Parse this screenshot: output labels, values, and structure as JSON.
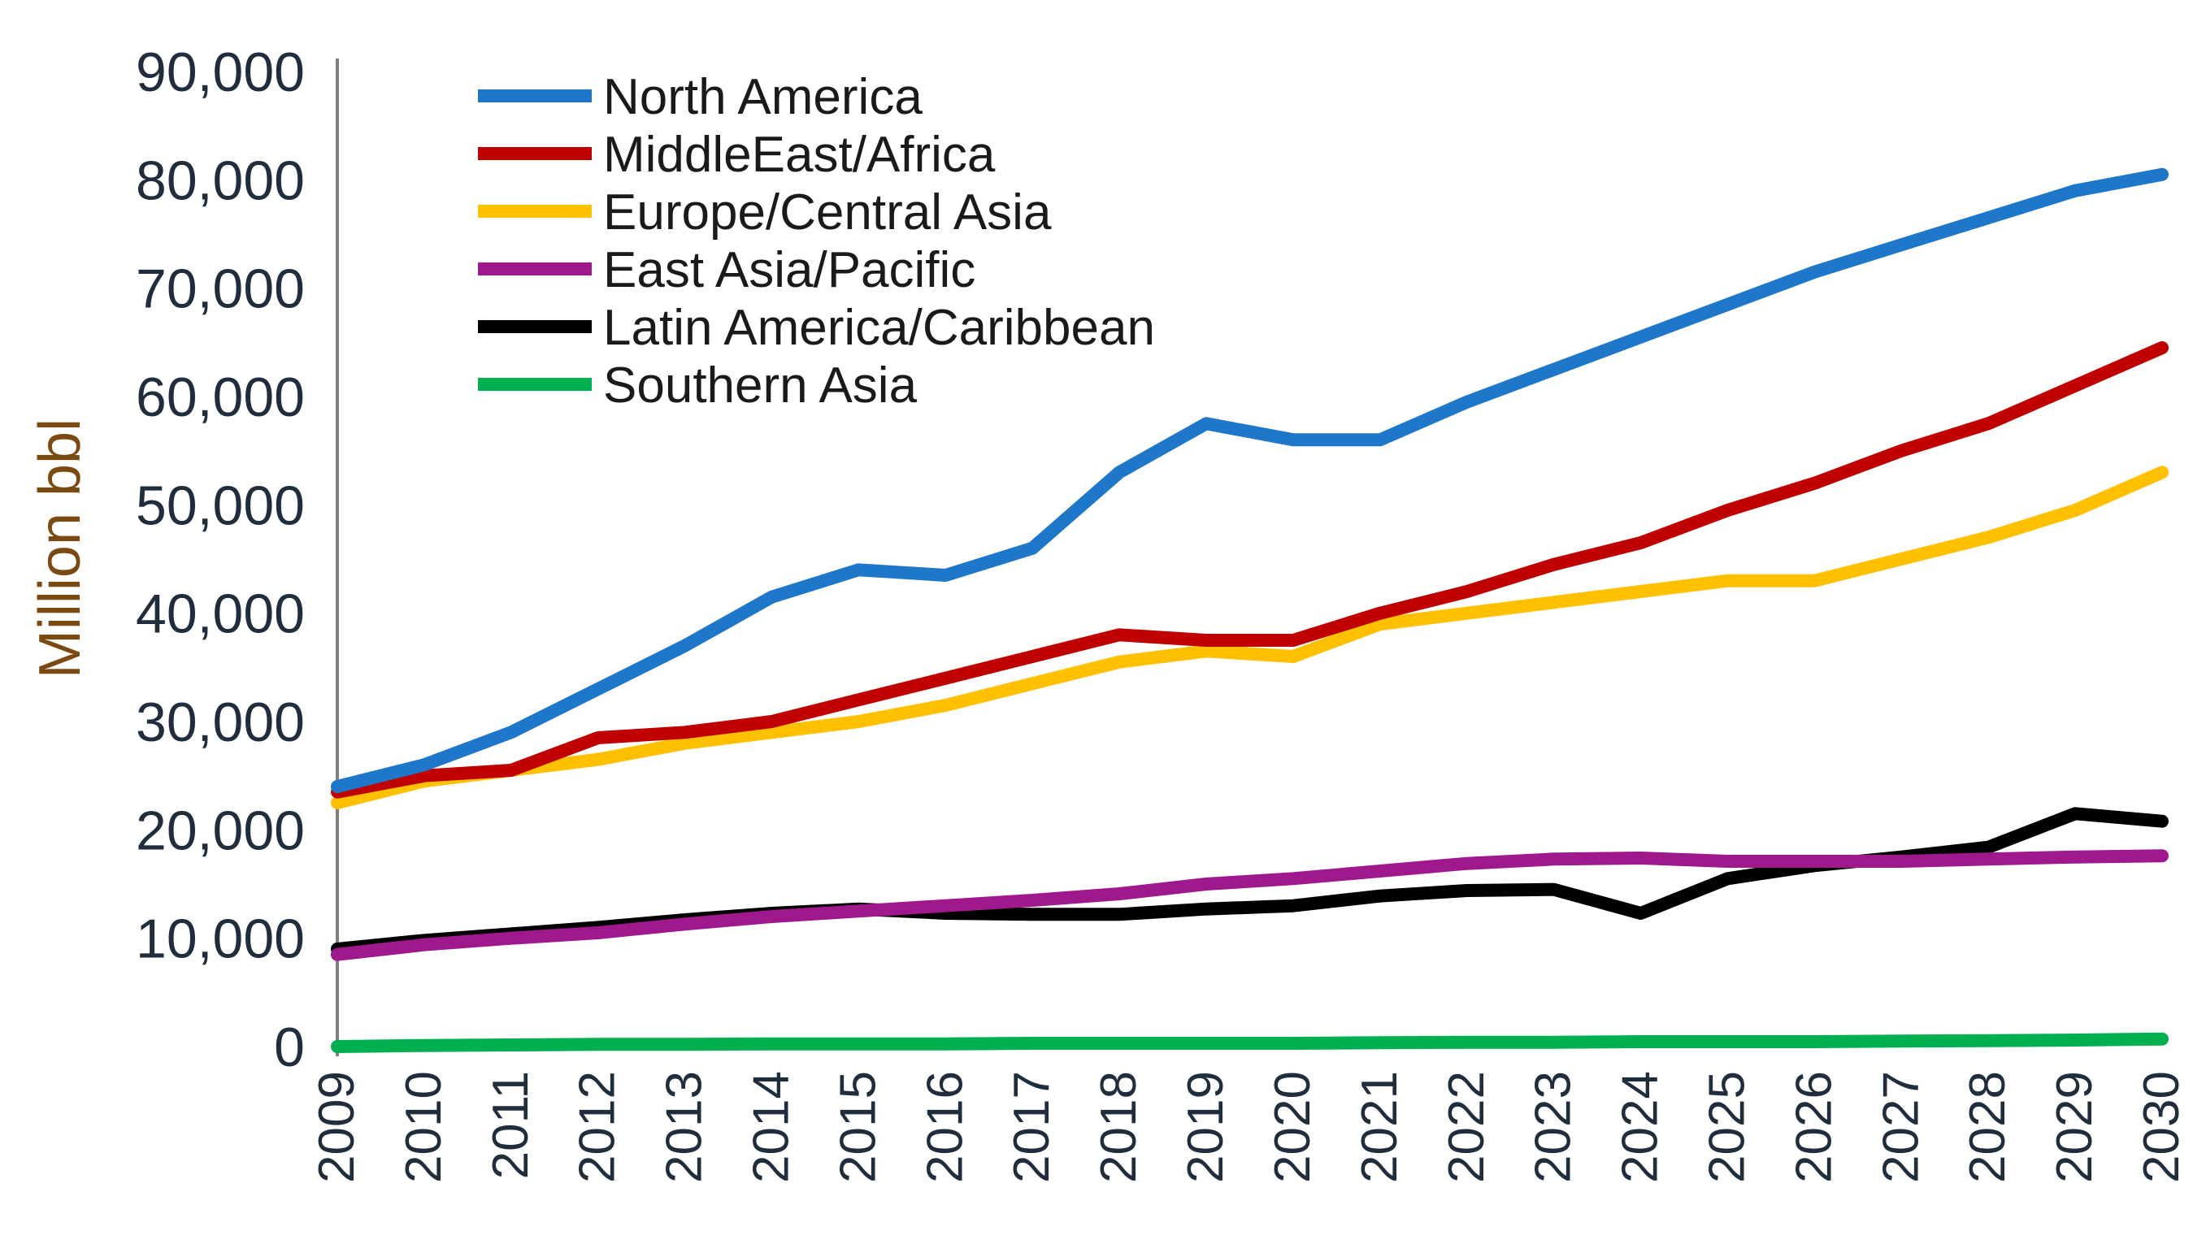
{
  "chart_data": {
    "type": "line",
    "title": "",
    "xlabel": "",
    "ylabel": "Million bbl",
    "ylim": [
      0,
      90000
    ],
    "yticks": [
      0,
      10000,
      20000,
      30000,
      40000,
      50000,
      60000,
      70000,
      80000,
      90000
    ],
    "ytick_labels": [
      "0",
      "10,000",
      "20,000",
      "30,000",
      "40,000",
      "50,000",
      "60,000",
      "70,000",
      "80,000",
      "90,000"
    ],
    "grid": false,
    "legend_position": "top-left",
    "x": [
      "2009",
      "2010",
      "2011",
      "2012",
      "2013",
      "2014",
      "2015",
      "2016",
      "2017",
      "2018",
      "2019",
      "2020",
      "2021",
      "2022",
      "2023",
      "2024",
      "2025",
      "2026",
      "2027",
      "2028",
      "2029",
      "2030"
    ],
    "series": [
      {
        "name": "North America",
        "color": "#1f77c9",
        "values": [
          24000,
          26000,
          29000,
          33000,
          37000,
          41500,
          44000,
          43500,
          46000,
          53000,
          57500,
          56000,
          56000,
          59500,
          62500,
          65500,
          68500,
          71500,
          74000,
          76500,
          79000,
          80500
        ]
      },
      {
        "name": "MiddleEast/Africa",
        "color": "#c00000",
        "values": [
          23500,
          25000,
          25500,
          28500,
          29000,
          30000,
          32000,
          34000,
          36000,
          38000,
          37500,
          37500,
          40000,
          42000,
          44500,
          46500,
          49500,
          52000,
          55000,
          57500,
          61000,
          64500
        ]
      },
      {
        "name": "Europe/Central Asia",
        "color": "#ffc000",
        "values": [
          22500,
          24500,
          25500,
          26500,
          28000,
          29000,
          30000,
          31500,
          33500,
          35500,
          36500,
          36000,
          39000,
          40000,
          41000,
          42000,
          43000,
          43000,
          45000,
          47000,
          49500,
          53000
        ]
      },
      {
        "name": "East Asia/Pacific",
        "color": "#a0198c",
        "values": [
          8500,
          9400,
          10000,
          10500,
          11300,
          12000,
          12500,
          13000,
          13500,
          14100,
          15000,
          15500,
          16200,
          16900,
          17300,
          17400,
          17100,
          17100,
          17100,
          17300,
          17500,
          17600
        ]
      },
      {
        "name": "Latin America/Caribbean",
        "color": "#000000",
        "values": [
          9000,
          9800,
          10400,
          11000,
          11700,
          12300,
          12700,
          12300,
          12200,
          12200,
          12700,
          13000,
          13900,
          14400,
          14500,
          12300,
          15500,
          16700,
          17500,
          18400,
          21500,
          20800
        ]
      },
      {
        "name": "Southern Asia",
        "color": "#00b050",
        "values": [
          0,
          100,
          150,
          200,
          200,
          250,
          250,
          250,
          300,
          300,
          300,
          300,
          350,
          400,
          400,
          450,
          450,
          450,
          500,
          550,
          600,
          700
        ]
      }
    ]
  }
}
